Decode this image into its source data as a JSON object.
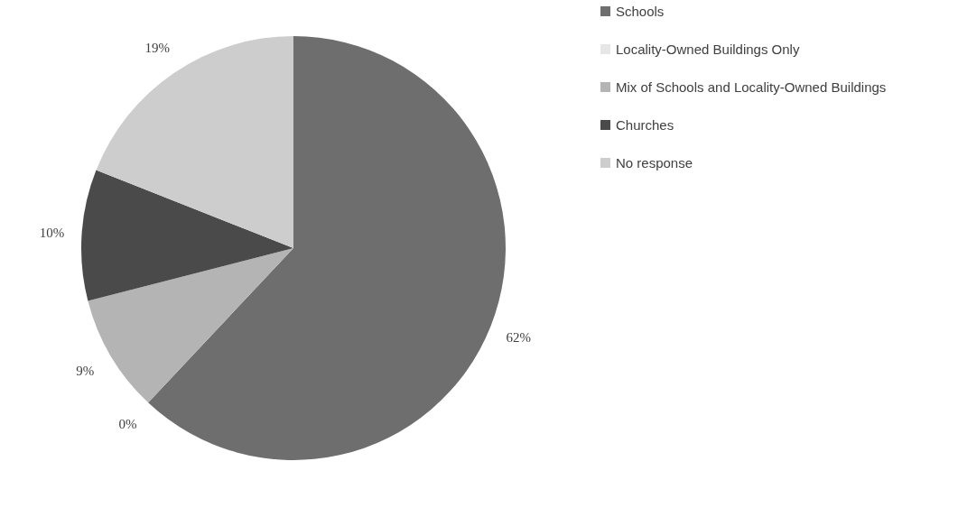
{
  "chart_data": {
    "type": "pie",
    "categories": [
      "Schools",
      "Locality-Owned Buildings Only",
      "Mix of Schools and Locality-Owned Buildings",
      "Churches",
      "No response"
    ],
    "values": [
      62,
      0,
      9,
      10,
      19
    ],
    "colors": [
      "#6e6e6e",
      "#e6e6e6",
      "#b4b4b4",
      "#4a4a4a",
      "#cdcdcd"
    ],
    "value_labels": [
      "62%",
      "0%",
      "9%",
      "10%",
      "19%"
    ],
    "legend": "right"
  }
}
